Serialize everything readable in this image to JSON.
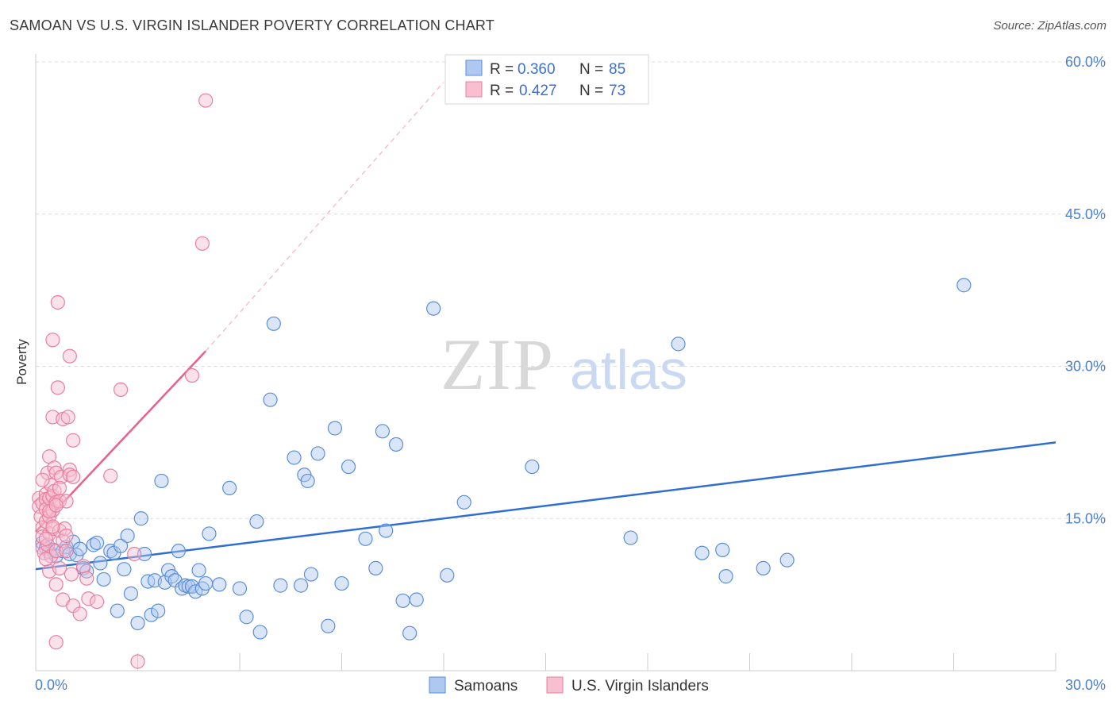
{
  "header": {
    "title": "SAMOAN VS U.S. VIRGIN ISLANDER POVERTY CORRELATION CHART",
    "source": "Source: ZipAtlas.com"
  },
  "watermark": {
    "zip": "ZIP",
    "atlas": "atlas"
  },
  "legend_top": [
    {
      "r_label": "R =",
      "r_value": "0.360",
      "n_label": "N =",
      "n_value": "85"
    },
    {
      "r_label": "R =",
      "r_value": "0.427",
      "n_label": "N =",
      "n_value": "73"
    }
  ],
  "legend_bottom": [
    "Samoans",
    "U.S. Virgin Islanders"
  ],
  "colors": {
    "blue_fill": "#aec8f0",
    "blue_stroke": "#5a8fd8",
    "blue_line": "#2f6fd0",
    "pink_fill": "#f7bfd0",
    "pink_stroke": "#e87fa0",
    "pink_line": "#e8608c"
  },
  "chart_data": {
    "type": "scatter",
    "title": "SAMOAN VS U.S. VIRGIN ISLANDER POVERTY CORRELATION CHART",
    "xlabel": "",
    "ylabel": "Poverty",
    "xlim": [
      0,
      30
    ],
    "ylim": [
      0,
      60
    ],
    "x_tick_labels": [
      "0.0%",
      "30.0%"
    ],
    "y_ticks": [
      15,
      30,
      45,
      60
    ],
    "y_tick_labels": [
      "15.0%",
      "30.0%",
      "45.0%",
      "60.0%"
    ],
    "grid": true,
    "legend_position": "top-center",
    "series": [
      {
        "name": "Samoans",
        "r": 0.36,
        "n": 85,
        "trend": {
          "x": [
            0,
            30
          ],
          "y": [
            10.0,
            22.5
          ]
        },
        "points": [
          [
            0.2,
            12.6
          ],
          [
            0.3,
            12.1
          ],
          [
            0.4,
            11.7
          ],
          [
            0.5,
            11.9
          ],
          [
            0.6,
            11.3
          ],
          [
            0.8,
            11.8
          ],
          [
            0.9,
            12.2
          ],
          [
            1.0,
            11.5
          ],
          [
            1.1,
            12.7
          ],
          [
            1.2,
            11.4
          ],
          [
            1.4,
            10.1
          ],
          [
            1.5,
            9.8
          ],
          [
            1.7,
            12.4
          ],
          [
            1.8,
            12.6
          ],
          [
            1.9,
            10.6
          ],
          [
            2.0,
            9.0
          ],
          [
            2.2,
            11.8
          ],
          [
            2.3,
            11.6
          ],
          [
            2.4,
            5.9
          ],
          [
            2.5,
            12.3
          ],
          [
            2.6,
            10.0
          ],
          [
            2.7,
            13.3
          ],
          [
            2.8,
            7.6
          ],
          [
            3.0,
            4.7
          ],
          [
            3.1,
            15.0
          ],
          [
            3.2,
            11.5
          ],
          [
            3.3,
            8.8
          ],
          [
            3.4,
            5.5
          ],
          [
            3.5,
            8.9
          ],
          [
            3.6,
            5.9
          ],
          [
            3.7,
            18.7
          ],
          [
            3.8,
            8.7
          ],
          [
            3.9,
            9.9
          ],
          [
            4.0,
            9.3
          ],
          [
            4.1,
            8.9
          ],
          [
            4.2,
            11.8
          ],
          [
            4.3,
            8.1
          ],
          [
            4.4,
            8.4
          ],
          [
            4.5,
            8.3
          ],
          [
            4.6,
            8.3
          ],
          [
            4.7,
            7.8
          ],
          [
            4.8,
            9.9
          ],
          [
            4.9,
            8.1
          ],
          [
            5.0,
            8.6
          ],
          [
            5.1,
            13.5
          ],
          [
            5.4,
            8.5
          ],
          [
            5.7,
            18.0
          ],
          [
            6.0,
            8.1
          ],
          [
            6.2,
            5.3
          ],
          [
            6.5,
            14.7
          ],
          [
            6.6,
            3.8
          ],
          [
            6.9,
            26.7
          ],
          [
            7.0,
            34.2
          ],
          [
            7.2,
            8.4
          ],
          [
            7.6,
            21.0
          ],
          [
            7.8,
            8.4
          ],
          [
            7.9,
            19.3
          ],
          [
            8.0,
            18.7
          ],
          [
            8.3,
            21.4
          ],
          [
            8.1,
            9.5
          ],
          [
            8.6,
            4.4
          ],
          [
            8.8,
            23.9
          ],
          [
            9.0,
            8.6
          ],
          [
            9.2,
            20.1
          ],
          [
            9.7,
            13.0
          ],
          [
            10.0,
            10.1
          ],
          [
            10.2,
            23.6
          ],
          [
            10.3,
            13.8
          ],
          [
            10.6,
            22.3
          ],
          [
            10.8,
            6.9
          ],
          [
            11.2,
            7.0
          ],
          [
            11.0,
            3.7
          ],
          [
            11.7,
            35.7
          ],
          [
            12.1,
            9.4
          ],
          [
            12.6,
            16.6
          ],
          [
            14.6,
            20.1
          ],
          [
            17.5,
            13.1
          ],
          [
            18.9,
            32.2
          ],
          [
            19.6,
            11.6
          ],
          [
            20.2,
            11.9
          ],
          [
            20.3,
            9.3
          ],
          [
            21.4,
            10.1
          ],
          [
            22.1,
            10.9
          ],
          [
            27.3,
            38.0
          ],
          [
            1.3,
            12.0
          ]
        ]
      },
      {
        "name": "U.S. Virgin Islanders",
        "r": 0.427,
        "n": 73,
        "trend": {
          "x": [
            0,
            5.0
          ],
          "y": [
            13.7,
            31.5
          ]
        },
        "trend_ext": {
          "x": [
            5.0,
            12.0
          ],
          "y": [
            31.5,
            58.0
          ]
        },
        "points": [
          [
            0.1,
            17.0
          ],
          [
            0.1,
            16.2
          ],
          [
            0.15,
            15.2
          ],
          [
            0.2,
            14.1
          ],
          [
            0.2,
            12.1
          ],
          [
            0.2,
            13.2
          ],
          [
            0.2,
            16.5
          ],
          [
            0.25,
            11.6
          ],
          [
            0.3,
            17.4
          ],
          [
            0.3,
            16.9
          ],
          [
            0.3,
            15.9
          ],
          [
            0.3,
            14.7
          ],
          [
            0.35,
            19.5
          ],
          [
            0.35,
            12.4
          ],
          [
            0.4,
            21.1
          ],
          [
            0.4,
            17.0
          ],
          [
            0.4,
            15.2
          ],
          [
            0.4,
            13.5
          ],
          [
            0.4,
            9.8
          ],
          [
            0.45,
            18.3
          ],
          [
            0.45,
            11.3
          ],
          [
            0.5,
            32.6
          ],
          [
            0.5,
            25.0
          ],
          [
            0.5,
            17.2
          ],
          [
            0.5,
            15.8
          ],
          [
            0.5,
            14.0
          ],
          [
            0.55,
            20.0
          ],
          [
            0.55,
            17.7
          ],
          [
            0.6,
            19.5
          ],
          [
            0.6,
            16.6
          ],
          [
            0.6,
            11.8
          ],
          [
            0.6,
            8.5
          ],
          [
            0.6,
            2.8
          ],
          [
            0.65,
            27.9
          ],
          [
            0.65,
            36.3
          ],
          [
            0.7,
            16.7
          ],
          [
            0.7,
            13.8
          ],
          [
            0.7,
            10.1
          ],
          [
            0.75,
            19.1
          ],
          [
            0.8,
            24.8
          ],
          [
            0.8,
            12.8
          ],
          [
            0.8,
            7.0
          ],
          [
            0.85,
            14.0
          ],
          [
            0.9,
            16.7
          ],
          [
            0.9,
            11.8
          ],
          [
            0.95,
            25.0
          ],
          [
            1.0,
            31.0
          ],
          [
            1.0,
            19.8
          ],
          [
            1.0,
            19.3
          ],
          [
            1.05,
            9.5
          ],
          [
            1.1,
            22.7
          ],
          [
            1.1,
            19.1
          ],
          [
            1.1,
            6.4
          ],
          [
            1.3,
            5.6
          ],
          [
            1.4,
            10.3
          ],
          [
            1.5,
            9.1
          ],
          [
            1.55,
            7.1
          ],
          [
            1.8,
            6.8
          ],
          [
            2.2,
            19.2
          ],
          [
            2.5,
            27.7
          ],
          [
            2.9,
            11.5
          ],
          [
            3.0,
            0.9
          ],
          [
            4.6,
            29.1
          ],
          [
            4.9,
            42.1
          ],
          [
            5.0,
            56.2
          ],
          [
            0.3,
            11.0
          ],
          [
            0.4,
            15.7
          ],
          [
            0.5,
            14.2
          ],
          [
            0.6,
            16.3
          ],
          [
            0.7,
            18.0
          ],
          [
            0.9,
            13.3
          ],
          [
            0.2,
            18.8
          ],
          [
            0.3,
            13.0
          ]
        ]
      }
    ]
  }
}
